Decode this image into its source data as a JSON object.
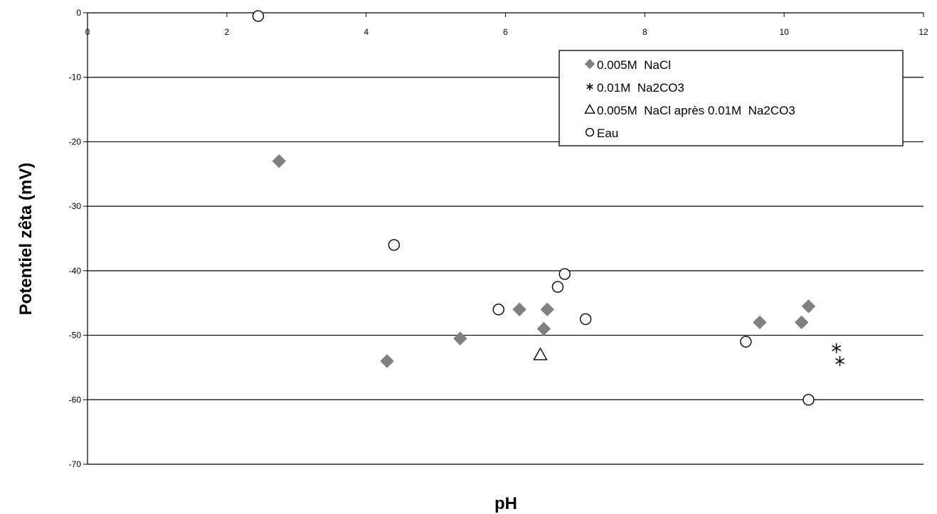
{
  "chart_data": {
    "type": "scatter",
    "xlabel": "pH",
    "ylabel": "Potentiel zêta (mV)",
    "xlim": [
      0,
      12
    ],
    "ylim": [
      -70,
      0
    ],
    "x_ticks": [
      0,
      2,
      4,
      6,
      8,
      10,
      12
    ],
    "y_ticks": [
      0,
      -10,
      -20,
      -30,
      -40,
      -50,
      -60,
      -70
    ],
    "grid": "horizontal major gridlines",
    "x_axis_position": "top (at y = 0)",
    "legend_position": "top-right",
    "series": [
      {
        "name": "0.005M  NaCl",
        "marker": "diamond",
        "color": "#808080",
        "points": [
          {
            "x": 2.75,
            "y": -23
          },
          {
            "x": 4.3,
            "y": -54
          },
          {
            "x": 5.35,
            "y": -50.5
          },
          {
            "x": 6.2,
            "y": -46
          },
          {
            "x": 6.55,
            "y": -49
          },
          {
            "x": 6.6,
            "y": -46
          },
          {
            "x": 9.65,
            "y": -48
          },
          {
            "x": 10.25,
            "y": -48
          },
          {
            "x": 10.35,
            "y": -45.5
          }
        ]
      },
      {
        "name": "0.01M  Na2CO3",
        "marker": "asterisk",
        "color": "#000000",
        "points": [
          {
            "x": 10.75,
            "y": -52
          },
          {
            "x": 10.8,
            "y": -54
          }
        ]
      },
      {
        "name": "0.005M  NaCl après 0.01M  Na2CO3",
        "marker": "triangle",
        "color": "#000000",
        "points": [
          {
            "x": 6.5,
            "y": -53
          }
        ]
      },
      {
        "name": "Eau",
        "marker": "circle",
        "color": "#000000",
        "points": [
          {
            "x": 2.45,
            "y": -0.5
          },
          {
            "x": 4.4,
            "y": -36
          },
          {
            "x": 5.9,
            "y": -46
          },
          {
            "x": 6.75,
            "y": -42.5
          },
          {
            "x": 6.85,
            "y": -40.5
          },
          {
            "x": 7.15,
            "y": -47.5
          },
          {
            "x": 9.45,
            "y": -51
          },
          {
            "x": 10.35,
            "y": -60
          }
        ]
      }
    ]
  }
}
